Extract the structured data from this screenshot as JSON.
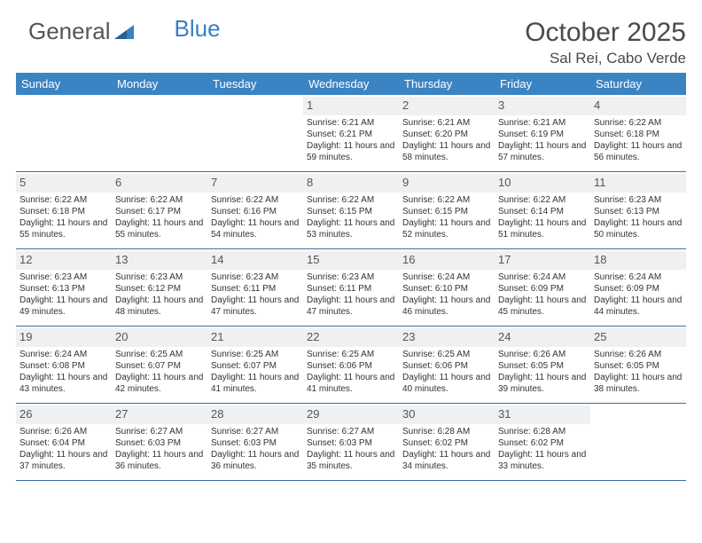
{
  "logo": {
    "part1": "General",
    "part2": "Blue"
  },
  "title": "October 2025",
  "location": "Sal Rei, Cabo Verde",
  "colors": {
    "header_bg": "#3b84c4",
    "header_text": "#ffffff",
    "row_border": "#3b6fa0",
    "daynum_bg": "#eef0f2",
    "text": "#333333",
    "logo_gray": "#555555",
    "logo_blue": "#3b7fc4"
  },
  "weekdays": [
    "Sunday",
    "Monday",
    "Tuesday",
    "Wednesday",
    "Thursday",
    "Friday",
    "Saturday"
  ],
  "weeks": [
    [
      {
        "empty": true
      },
      {
        "empty": true
      },
      {
        "empty": true
      },
      {
        "n": "1",
        "sr": "6:21 AM",
        "ss": "6:21 PM",
        "dl": "11 hours and 59 minutes."
      },
      {
        "n": "2",
        "sr": "6:21 AM",
        "ss": "6:20 PM",
        "dl": "11 hours and 58 minutes."
      },
      {
        "n": "3",
        "sr": "6:21 AM",
        "ss": "6:19 PM",
        "dl": "11 hours and 57 minutes."
      },
      {
        "n": "4",
        "sr": "6:22 AM",
        "ss": "6:18 PM",
        "dl": "11 hours and 56 minutes."
      }
    ],
    [
      {
        "n": "5",
        "sr": "6:22 AM",
        "ss": "6:18 PM",
        "dl": "11 hours and 55 minutes."
      },
      {
        "n": "6",
        "sr": "6:22 AM",
        "ss": "6:17 PM",
        "dl": "11 hours and 55 minutes."
      },
      {
        "n": "7",
        "sr": "6:22 AM",
        "ss": "6:16 PM",
        "dl": "11 hours and 54 minutes."
      },
      {
        "n": "8",
        "sr": "6:22 AM",
        "ss": "6:15 PM",
        "dl": "11 hours and 53 minutes."
      },
      {
        "n": "9",
        "sr": "6:22 AM",
        "ss": "6:15 PM",
        "dl": "11 hours and 52 minutes."
      },
      {
        "n": "10",
        "sr": "6:22 AM",
        "ss": "6:14 PM",
        "dl": "11 hours and 51 minutes."
      },
      {
        "n": "11",
        "sr": "6:23 AM",
        "ss": "6:13 PM",
        "dl": "11 hours and 50 minutes."
      }
    ],
    [
      {
        "n": "12",
        "sr": "6:23 AM",
        "ss": "6:13 PM",
        "dl": "11 hours and 49 minutes."
      },
      {
        "n": "13",
        "sr": "6:23 AM",
        "ss": "6:12 PM",
        "dl": "11 hours and 48 minutes."
      },
      {
        "n": "14",
        "sr": "6:23 AM",
        "ss": "6:11 PM",
        "dl": "11 hours and 47 minutes."
      },
      {
        "n": "15",
        "sr": "6:23 AM",
        "ss": "6:11 PM",
        "dl": "11 hours and 47 minutes."
      },
      {
        "n": "16",
        "sr": "6:24 AM",
        "ss": "6:10 PM",
        "dl": "11 hours and 46 minutes."
      },
      {
        "n": "17",
        "sr": "6:24 AM",
        "ss": "6:09 PM",
        "dl": "11 hours and 45 minutes."
      },
      {
        "n": "18",
        "sr": "6:24 AM",
        "ss": "6:09 PM",
        "dl": "11 hours and 44 minutes."
      }
    ],
    [
      {
        "n": "19",
        "sr": "6:24 AM",
        "ss": "6:08 PM",
        "dl": "11 hours and 43 minutes."
      },
      {
        "n": "20",
        "sr": "6:25 AM",
        "ss": "6:07 PM",
        "dl": "11 hours and 42 minutes."
      },
      {
        "n": "21",
        "sr": "6:25 AM",
        "ss": "6:07 PM",
        "dl": "11 hours and 41 minutes."
      },
      {
        "n": "22",
        "sr": "6:25 AM",
        "ss": "6:06 PM",
        "dl": "11 hours and 41 minutes."
      },
      {
        "n": "23",
        "sr": "6:25 AM",
        "ss": "6:06 PM",
        "dl": "11 hours and 40 minutes."
      },
      {
        "n": "24",
        "sr": "6:26 AM",
        "ss": "6:05 PM",
        "dl": "11 hours and 39 minutes."
      },
      {
        "n": "25",
        "sr": "6:26 AM",
        "ss": "6:05 PM",
        "dl": "11 hours and 38 minutes."
      }
    ],
    [
      {
        "n": "26",
        "sr": "6:26 AM",
        "ss": "6:04 PM",
        "dl": "11 hours and 37 minutes."
      },
      {
        "n": "27",
        "sr": "6:27 AM",
        "ss": "6:03 PM",
        "dl": "11 hours and 36 minutes."
      },
      {
        "n": "28",
        "sr": "6:27 AM",
        "ss": "6:03 PM",
        "dl": "11 hours and 36 minutes."
      },
      {
        "n": "29",
        "sr": "6:27 AM",
        "ss": "6:03 PM",
        "dl": "11 hours and 35 minutes."
      },
      {
        "n": "30",
        "sr": "6:28 AM",
        "ss": "6:02 PM",
        "dl": "11 hours and 34 minutes."
      },
      {
        "n": "31",
        "sr": "6:28 AM",
        "ss": "6:02 PM",
        "dl": "11 hours and 33 minutes."
      },
      {
        "empty": true
      }
    ]
  ],
  "labels": {
    "sunrise": "Sunrise:",
    "sunset": "Sunset:",
    "daylight": "Daylight:"
  }
}
